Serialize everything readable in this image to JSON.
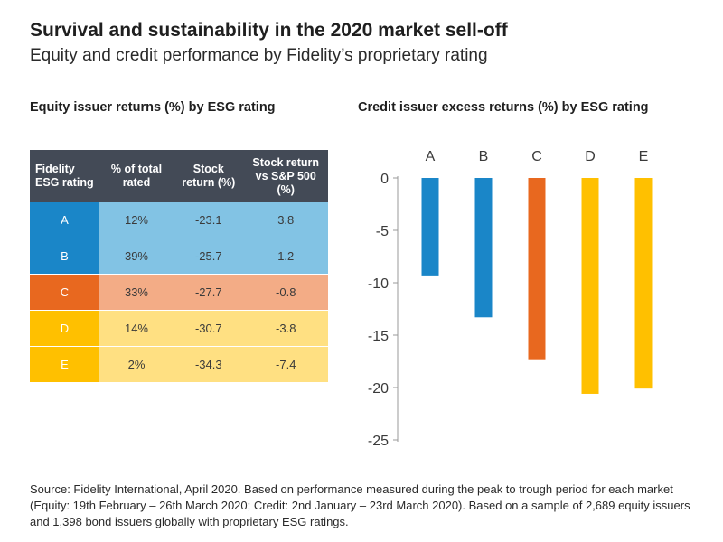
{
  "title": "Survival and sustainability in the 2020 market sell-off",
  "subtitle": "Equity and credit performance by Fidelity’s proprietary rating",
  "equity_table": {
    "title": "Equity issuer returns (%) by ESG rating",
    "headers": [
      "Fidelity ESG rating",
      "% of total rated",
      "Stock return (%)",
      "Stock return vs S&P 500 (%)"
    ],
    "rows": [
      {
        "rating": "A",
        "pct": "12%",
        "ret": "-23.1",
        "vs": "3.8"
      },
      {
        "rating": "B",
        "pct": "39%",
        "ret": "-25.7",
        "vs": "1.2"
      },
      {
        "rating": "C",
        "pct": "33%",
        "ret": "-27.7",
        "vs": "-0.8"
      },
      {
        "rating": "D",
        "pct": "14%",
        "ret": "-30.7",
        "vs": "-3.8"
      },
      {
        "rating": "E",
        "pct": "2%",
        "ret": "-34.3",
        "vs": "-7.4"
      }
    ],
    "colors": {
      "A": {
        "label": "#1a86c8",
        "row": "#82c3e4"
      },
      "B": {
        "label": "#1a86c8",
        "row": "#82c3e4"
      },
      "C": {
        "label": "#e8681f",
        "row": "#f3ac86"
      },
      "D": {
        "label": "#ffc000",
        "row": "#ffe082"
      },
      "E": {
        "label": "#ffc000",
        "row": "#ffe082"
      }
    },
    "header_color": "#434a56"
  },
  "chart_data": {
    "type": "bar",
    "title": "Credit issuer excess returns (%) by ESG rating",
    "categories": [
      "A",
      "B",
      "C",
      "D",
      "E"
    ],
    "values": [
      -9.3,
      -13.3,
      -17.3,
      -20.6,
      -20.1
    ],
    "colors": [
      "#1a86c8",
      "#1a86c8",
      "#e8681f",
      "#ffc000",
      "#ffc000"
    ],
    "ylim": [
      -25,
      0
    ],
    "yticks": [
      0,
      -5,
      -10,
      -15,
      -20,
      -25
    ],
    "xaxis_position": "top",
    "grid": false,
    "xlabel": "",
    "ylabel": ""
  },
  "footer": "Source: Fidelity International, April 2020. Based on performance measured during the peak to trough period for each market (Equity: 19th February – 26th March 2020; Credit: 2nd January – 23rd March 2020). Based on a sample of 2,689 equity issuers and 1,398 bond issuers globally with proprietary ESG ratings."
}
